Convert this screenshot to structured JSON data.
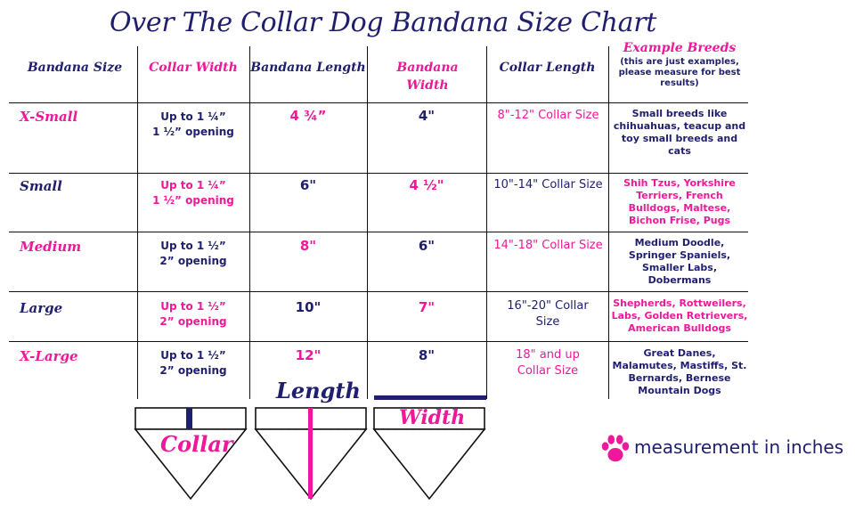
{
  "title": "Over The Collar Dog Bandana Size Chart",
  "colors": {
    "navy": "#1f1f6e",
    "pink": "#f0189a"
  },
  "headers": {
    "size": "Bandana Size",
    "collar_width": "Collar Width",
    "bandana_length": "Bandana Length",
    "bandana_width": "Bandana Width",
    "collar_length": "Collar Length",
    "breeds": "Example Breeds",
    "breeds_note": "(this are just examples, please measure for best results)"
  },
  "rows": [
    {
      "size": "X-Small",
      "collar_width_1": "Up to 1 ¼”",
      "collar_width_2": "1 ½” opening",
      "bandana_length": "4 ¾”",
      "bandana_width": "4\"",
      "collar_length": "8\"-12\" Collar Size",
      "breeds": "Small breeds like chihuahuas, teacup and toy small breeds and cats"
    },
    {
      "size": "Small",
      "collar_width_1": "Up to 1 ¼”",
      "collar_width_2": "1 ½” opening",
      "bandana_length": "6\"",
      "bandana_width": "4 ½\"",
      "collar_length": "10\"-14\" Collar Size",
      "breeds": "Shih Tzus, Yorkshire Terriers, French Bulldogs, Maltese, Bichon Frise, Pugs"
    },
    {
      "size": "Medium",
      "collar_width_1": "Up to 1 ½”",
      "collar_width_2": "2” opening",
      "bandana_length": "8\"",
      "bandana_width": "6\"",
      "collar_length": "14\"-18\" Collar Size",
      "breeds": "Medium Doodle, Springer Spaniels, Smaller Labs, Dobermans"
    },
    {
      "size": "Large",
      "collar_width_1": "Up to 1 ½”",
      "collar_width_2": "2” opening",
      "bandana_length": "10\"",
      "bandana_width": "7\"",
      "collar_length": "16\"-20\" Collar Size",
      "breeds": "Shepherds, Rottweilers, Labs, Golden Retrievers, American Bulldogs"
    },
    {
      "size": "X-Large",
      "collar_width_1": "Up to 1 ½”",
      "collar_width_2": "2” opening",
      "bandana_length": "12\"",
      "bandana_width": "8\"",
      "collar_length": "18\" and up Collar Size",
      "breeds": "Great Danes, Malamutes, Mastiffs, St. Bernards, Bernese Mountain Dogs"
    }
  ],
  "diagrams": {
    "collar": "Collar",
    "length": "Length",
    "width": "Width"
  },
  "footer": {
    "note": "measurement in inches",
    "icon": "paw-print-icon"
  }
}
